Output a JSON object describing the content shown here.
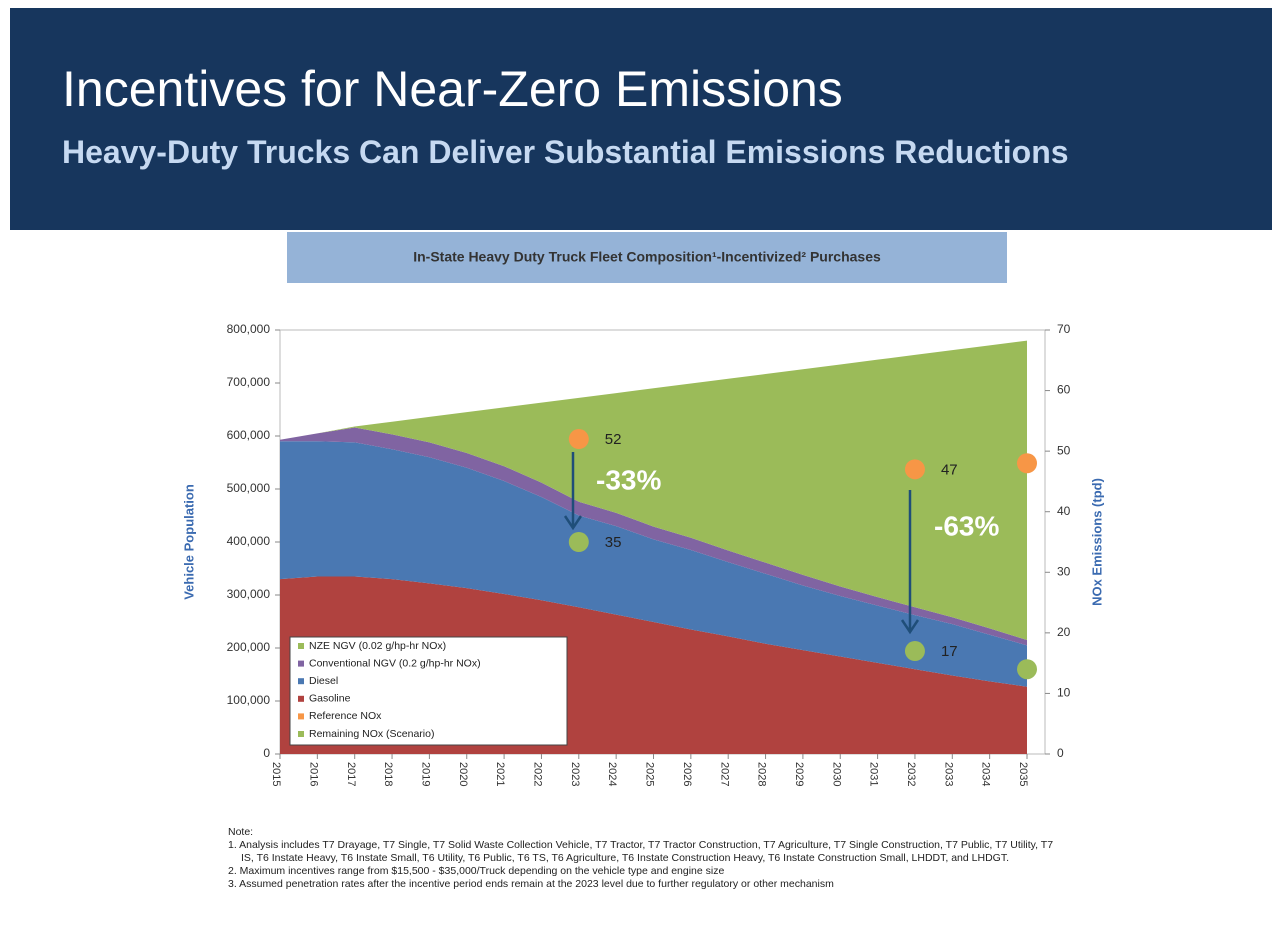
{
  "header": {
    "title": "Incentives for Near-Zero Emissions",
    "subtitle": "Heavy-Duty Trucks Can Deliver Substantial Emissions Reductions"
  },
  "chart_data": {
    "type": "stacked-area",
    "title": "In-State Heavy Duty Truck Fleet Composition¹-Incentivized² Purchases",
    "y_label": "Vehicle Population",
    "y2_label": "NOx Emissions (tpd)",
    "x": [
      2015,
      2016,
      2017,
      2018,
      2019,
      2020,
      2021,
      2022,
      2023,
      2024,
      2025,
      2026,
      2027,
      2028,
      2029,
      2030,
      2031,
      2032,
      2033,
      2034,
      2035
    ],
    "xlim": [
      2015,
      2035
    ],
    "xticks": [
      2015,
      2016,
      2017,
      2018,
      2019,
      2020,
      2021,
      2022,
      2023,
      2024,
      2025,
      2026,
      2027,
      2028,
      2029,
      2030,
      2031,
      2032,
      2033,
      2034,
      2035
    ],
    "ylim": [
      0,
      800000
    ],
    "yticks": [
      0,
      {
        "value": 100000,
        "label": "100,000"
      },
      {
        "value": 200000,
        "label": "200,000"
      },
      {
        "value": 300000,
        "label": "300,000"
      },
      {
        "value": 400000,
        "label": "400,000"
      },
      {
        "value": 500000,
        "label": "500,000"
      },
      {
        "value": 600000,
        "label": "600,000"
      },
      {
        "value": 700000,
        "label": "700,000"
      },
      {
        "value": 800000,
        "label": "800,000"
      }
    ],
    "y2lim": [
      0,
      70
    ],
    "y2ticks": [
      0,
      10,
      20,
      30,
      40,
      50,
      60,
      70
    ],
    "series": [
      {
        "name": "NZE NGV (0.02 g/hp-hr NOx)",
        "type": "area",
        "color": "#9bbb59",
        "values": [
          0,
          0,
          2000,
          24000,
          48000,
          77000,
          111000,
          151000,
          196000,
          226000,
          261000,
          291000,
          324000,
          356000,
          388000,
          419000,
          448000,
          476000,
          504000,
          534000,
          565000
        ]
      },
      {
        "name": "Conventional NGV (0.2 g/hp-hr NOx)",
        "type": "area",
        "color": "#8064a2",
        "values": [
          3000,
          15000,
          28000,
          28000,
          28000,
          28000,
          28000,
          27000,
          26000,
          25000,
          24000,
          23000,
          22000,
          21000,
          20000,
          18000,
          16000,
          15000,
          13000,
          12000,
          10000
        ]
      },
      {
        "name": "Diesel",
        "type": "area",
        "color": "#4a78b2",
        "values": [
          260000,
          255000,
          253000,
          245000,
          238000,
          227000,
          213000,
          195000,
          173000,
          167000,
          156000,
          150000,
          140000,
          132000,
          122000,
          114000,
          108000,
          102000,
          97000,
          88000,
          78000
        ]
      },
      {
        "name": "Gasoline",
        "type": "area",
        "color": "#b0423f",
        "values": [
          330000,
          335000,
          335000,
          330000,
          322000,
          313000,
          302000,
          290000,
          277000,
          263000,
          249000,
          235000,
          222000,
          208000,
          196000,
          184000,
          172000,
          160000,
          148000,
          137000,
          127000
        ]
      },
      {
        "name": "Reference NOx",
        "type": "scatter",
        "axis": "y2",
        "color": "#f79646",
        "x": [
          2023,
          2032,
          2035
        ],
        "values": [
          52,
          47,
          48
        ],
        "value_labels": [
          "52",
          "47",
          null
        ]
      },
      {
        "name": "Remaining NOx (Scenario)",
        "type": "scatter",
        "axis": "y2",
        "color": "#9bbb59",
        "x": [
          2023,
          2032,
          2035
        ],
        "values": [
          35,
          17,
          14
        ],
        "value_labels": [
          "35",
          "17",
          null
        ]
      }
    ],
    "annotations": [
      "-33%",
      "-63%"
    ]
  },
  "notes": {
    "heading": "Note:",
    "items": [
      "1. Analysis includes T7 Drayage, T7 Single, T7 Solid Waste Collection Vehicle, T7 Tractor, T7 Tractor Construction, T7 Agriculture, T7 Single Construction, T7 Public, T7 Utility, T7 IS, T6 Instate Heavy, T6 Instate Small, T6 Utility, T6 Public, T6 TS, T6 Agriculture, T6 Instate Construction Heavy, T6 Instate Construction Small, LHDDT, and LHDGT.",
      "2. Maximum incentives range from $15,500 - $35,000/Truck depending on the vehicle type and engine size",
      "3. Assumed penetration rates after the incentive period ends remain at the 2023 level due to further regulatory or other mechanism"
    ]
  }
}
